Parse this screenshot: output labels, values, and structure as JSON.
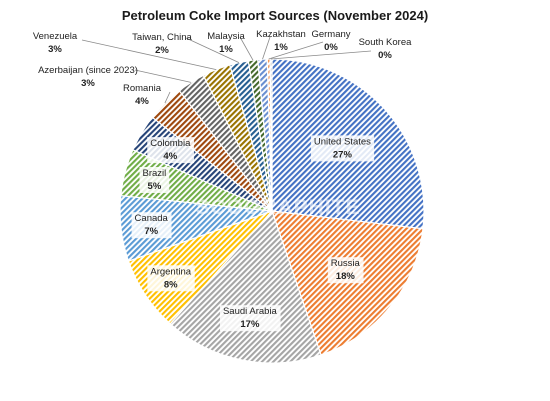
{
  "chart_data": {
    "type": "pie",
    "title": "Petroleum Coke Import Sources (November 2024)",
    "slices": [
      {
        "label": "United States",
        "value": 27,
        "value_text": "27%",
        "color": "#4472c4"
      },
      {
        "label": "Russia",
        "value": 18,
        "value_text": "18%",
        "color": "#ed7d31"
      },
      {
        "label": "Saudi Arabia",
        "value": 17,
        "value_text": "17%",
        "color": "#a5a5a5"
      },
      {
        "label": "Argentina",
        "value": 8,
        "value_text": "8%",
        "color": "#ffc000"
      },
      {
        "label": "Canada",
        "value": 7,
        "value_text": "7%",
        "color": "#5b9bd5"
      },
      {
        "label": "Brazil",
        "value": 5,
        "value_text": "5%",
        "color": "#70ad47"
      },
      {
        "label": "Colombia",
        "value": 4,
        "value_text": "4%",
        "color": "#264478"
      },
      {
        "label": "Romania",
        "value": 4,
        "value_text": "4%",
        "color": "#9e480e"
      },
      {
        "label": "Azerbaijan (since 2023)",
        "value": 3,
        "value_text": "3%",
        "color": "#636363"
      },
      {
        "label": "Venezuela",
        "value": 3,
        "value_text": "3%",
        "color": "#997300"
      },
      {
        "label": "Taiwan, China",
        "value": 2,
        "value_text": "2%",
        "color": "#255e91"
      },
      {
        "label": "Malaysia",
        "value": 1,
        "value_text": "1%",
        "color": "#43682b"
      },
      {
        "label": "Kazakhstan",
        "value": 1,
        "value_text": "1%",
        "color": "#698ed0"
      },
      {
        "label": "Germany",
        "value": 0.3,
        "value_text": "0%",
        "color": "#f1975a"
      },
      {
        "label": "South Korea",
        "value": 0.2,
        "value_text": "0%",
        "color": "#b7b7b7"
      }
    ]
  },
  "watermark": "SCOGRAPHITE"
}
